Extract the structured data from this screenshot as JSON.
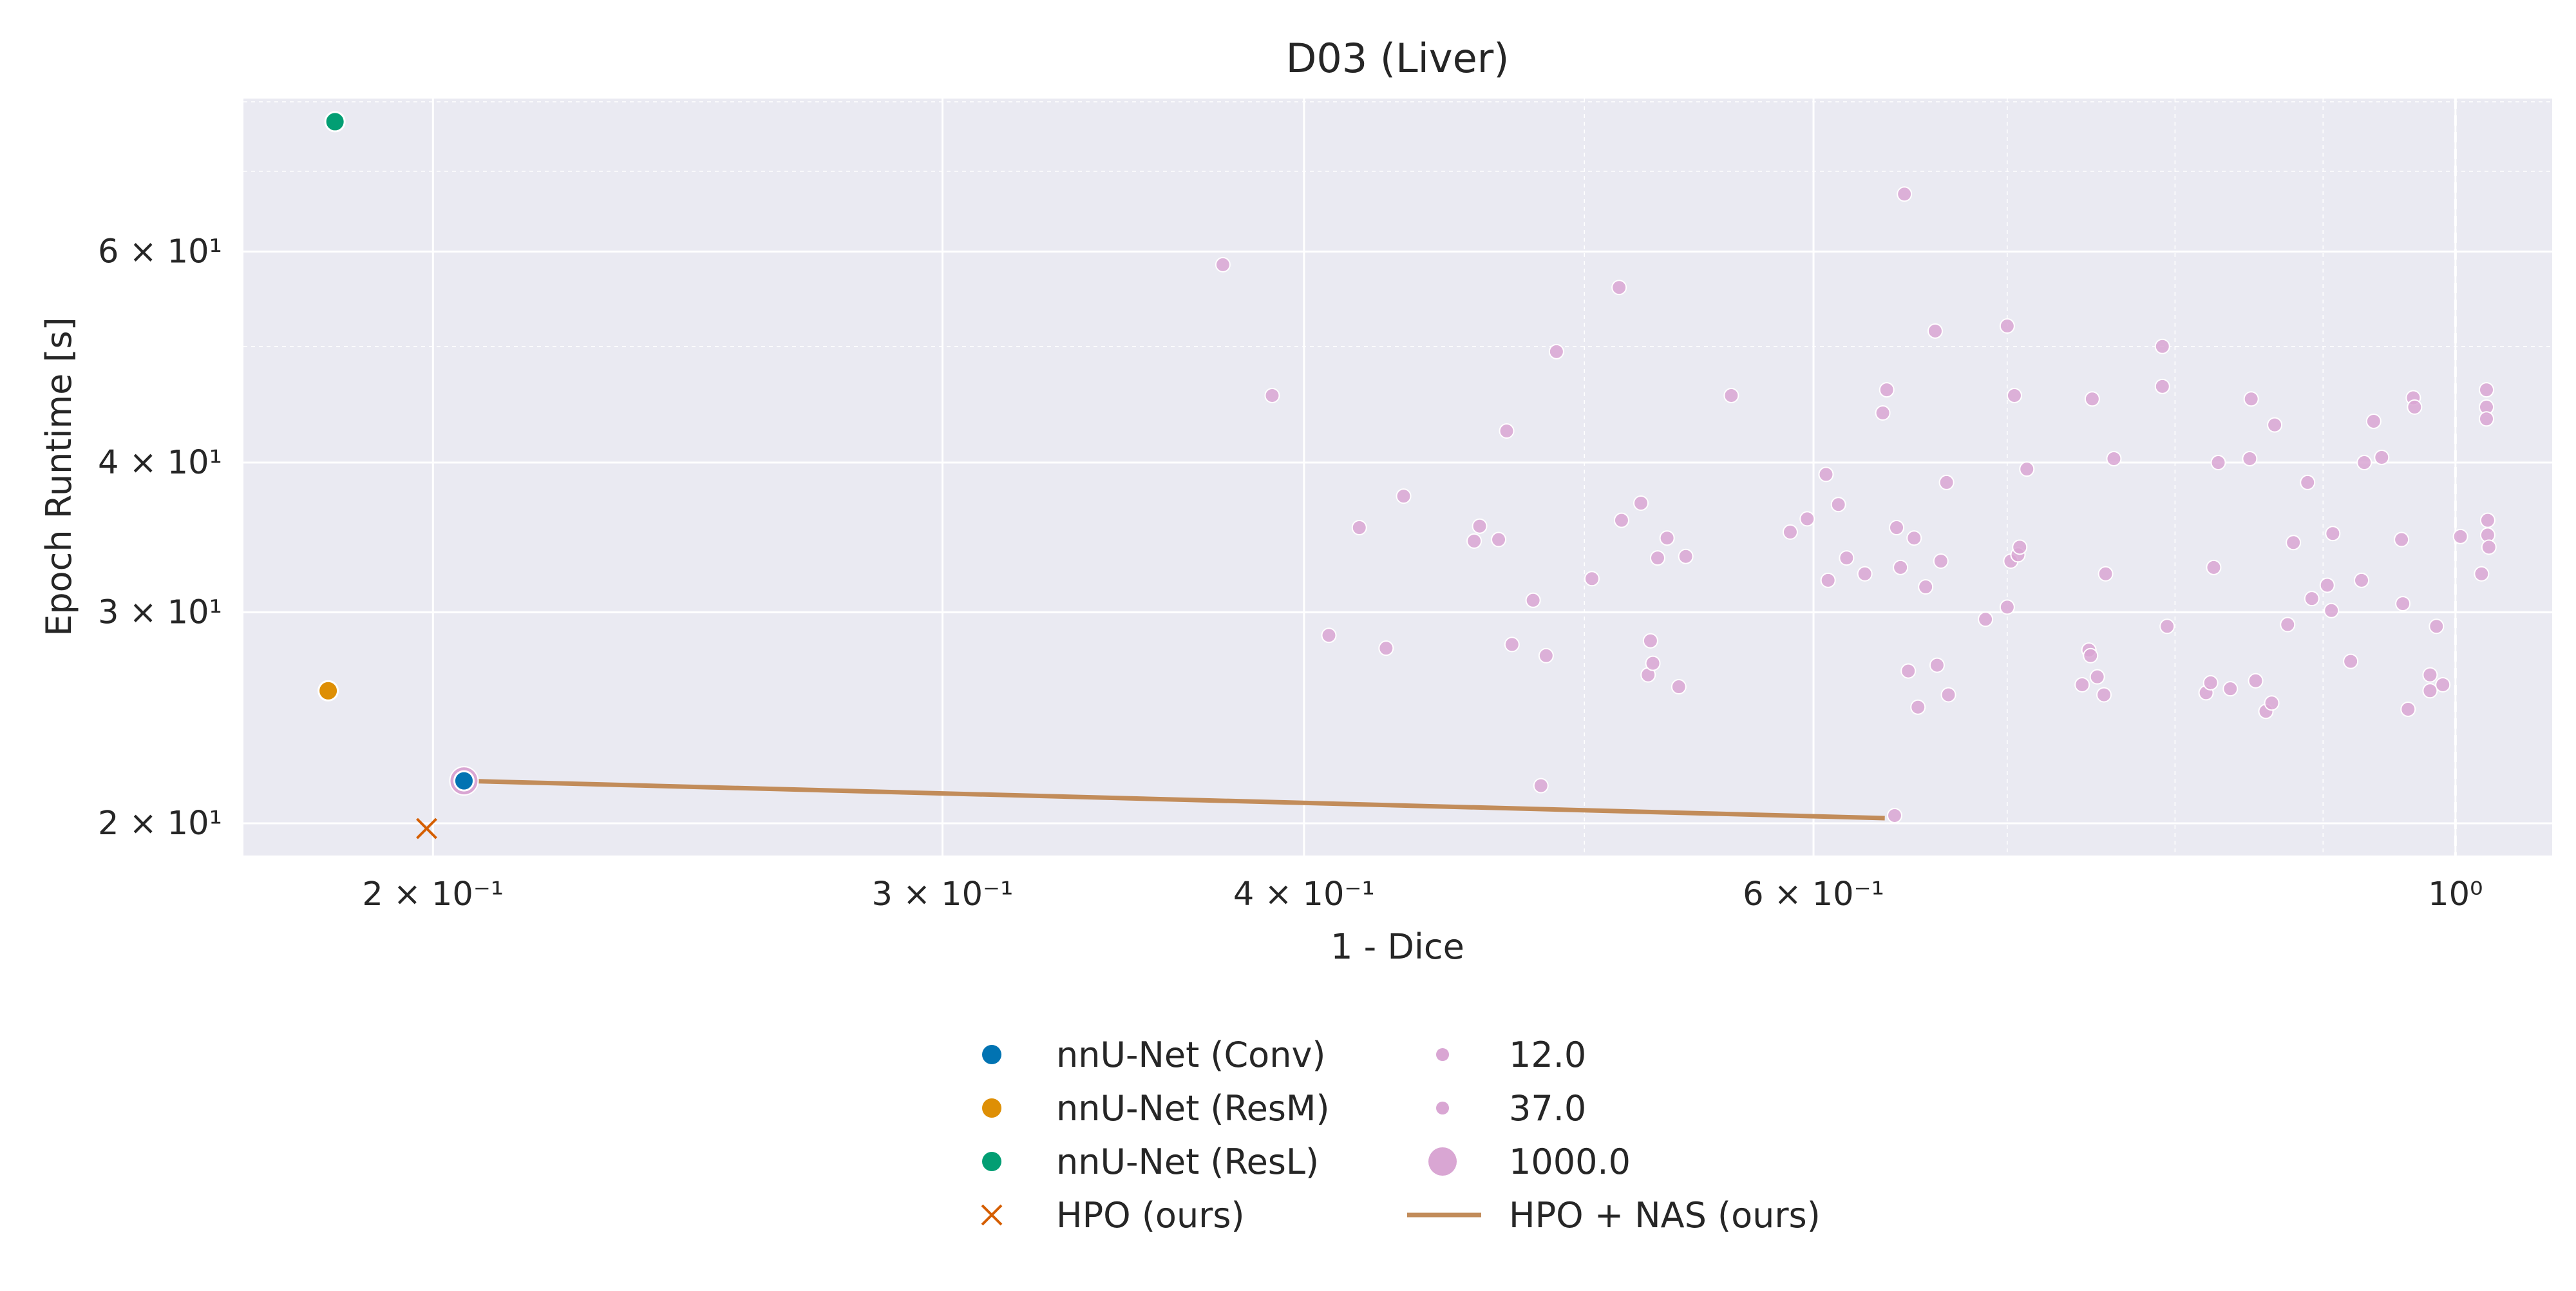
{
  "chart_data": {
    "type": "scatter",
    "title": "D03 (Liver)",
    "xlabel": "1 - Dice",
    "ylabel": "Epoch Runtime [s]",
    "x_scale": "log",
    "y_scale": "log",
    "xlim": [
      0.172,
      1.08
    ],
    "ylim": [
      18.8,
      80.5
    ],
    "grid": true,
    "x_reference_line": 1.0,
    "x_ticks": [
      {
        "value": 0.2,
        "label": "2 × 10⁻¹"
      },
      {
        "value": 0.3,
        "label": "3 × 10⁻¹"
      },
      {
        "value": 0.4,
        "label": "4 × 10⁻¹"
      },
      {
        "value": 0.6,
        "label": "6 × 10⁻¹"
      },
      {
        "value": 1.0,
        "label": "10⁰"
      }
    ],
    "y_ticks": [
      {
        "value": 20,
        "label": "2 × 10¹"
      },
      {
        "value": 30,
        "label": "3 × 10¹"
      },
      {
        "value": 40,
        "label": "4 × 10¹"
      },
      {
        "value": 60,
        "label": "6 × 10¹"
      }
    ],
    "baselines": [
      {
        "name": "nnU-Net (Conv)",
        "color": "#0173b2",
        "points": [
          [
            0.205,
            21.7
          ]
        ]
      },
      {
        "name": "nnU-Net (ResM)",
        "color": "#de8f05",
        "points": [
          [
            0.184,
            25.8
          ]
        ]
      },
      {
        "name": "nnU-Net (ResL)",
        "color": "#029e73",
        "points": [
          [
            0.185,
            77.0
          ]
        ]
      }
    ],
    "hpo": {
      "name": "HPO (ours)",
      "color": "#d55e00",
      "marker": "x",
      "points": [
        [
          0.199,
          19.8
        ]
      ]
    },
    "pareto_front": {
      "name": "HPO + NAS (ours)",
      "color": "#c28c5a",
      "points": [
        [
          0.205,
          21.7
        ],
        [
          0.635,
          20.2
        ]
      ]
    },
    "nas_color": "#d9a6d3",
    "nas_points": [
      [
        0.375,
        58.5
      ],
      [
        0.39,
        45.5
      ],
      [
        0.408,
        28.7
      ],
      [
        0.418,
        35.3
      ],
      [
        0.427,
        28.0
      ],
      [
        0.433,
        37.5
      ],
      [
        0.458,
        34.4
      ],
      [
        0.46,
        35.4
      ],
      [
        0.467,
        34.5
      ],
      [
        0.47,
        42.5
      ],
      [
        0.472,
        28.2
      ],
      [
        0.48,
        30.7
      ],
      [
        0.483,
        21.5
      ],
      [
        0.485,
        27.6
      ],
      [
        0.489,
        49.5
      ],
      [
        0.503,
        32.0
      ],
      [
        0.514,
        56.0
      ],
      [
        0.515,
        35.8
      ],
      [
        0.523,
        37.0
      ],
      [
        0.526,
        26.6
      ],
      [
        0.527,
        28.4
      ],
      [
        0.528,
        27.2
      ],
      [
        0.53,
        33.3
      ],
      [
        0.534,
        34.6
      ],
      [
        0.539,
        26.0
      ],
      [
        0.542,
        33.4
      ],
      [
        0.562,
        45.5
      ],
      [
        0.589,
        35.0
      ],
      [
        0.597,
        35.9
      ],
      [
        0.606,
        39.1
      ],
      [
        0.607,
        31.9
      ],
      [
        0.612,
        36.9
      ],
      [
        0.616,
        33.3
      ],
      [
        0.625,
        32.3
      ],
      [
        0.634,
        44.0
      ],
      [
        0.636,
        46.0
      ],
      [
        0.641,
        35.3
      ],
      [
        0.643,
        32.7
      ],
      [
        0.645,
        67.0
      ],
      [
        0.647,
        26.8
      ],
      [
        0.65,
        34.6
      ],
      [
        0.652,
        25.0
      ],
      [
        0.656,
        31.5
      ],
      [
        0.661,
        51.5
      ],
      [
        0.662,
        27.1
      ],
      [
        0.664,
        33.1
      ],
      [
        0.667,
        38.5
      ],
      [
        0.668,
        25.6
      ],
      [
        0.688,
        29.6
      ],
      [
        0.7,
        30.3
      ],
      [
        0.7,
        52.0
      ],
      [
        0.702,
        33.1
      ],
      [
        0.704,
        45.5
      ],
      [
        0.706,
        33.5
      ],
      [
        0.707,
        34.0
      ],
      [
        0.711,
        39.5
      ],
      [
        0.743,
        26.1
      ],
      [
        0.747,
        27.9
      ],
      [
        0.748,
        27.6
      ],
      [
        0.749,
        45.2
      ],
      [
        0.752,
        26.5
      ],
      [
        0.756,
        25.6
      ],
      [
        0.757,
        32.3
      ],
      [
        0.762,
        40.3
      ],
      [
        0.792,
        50.0
      ],
      [
        0.792,
        46.3
      ],
      [
        0.795,
        29.2
      ],
      [
        0.82,
        25.7
      ],
      [
        0.823,
        26.2
      ],
      [
        0.825,
        32.7
      ],
      [
        0.828,
        40.0
      ],
      [
        0.836,
        25.9
      ],
      [
        0.849,
        40.3
      ],
      [
        0.85,
        45.2
      ],
      [
        0.853,
        26.3
      ],
      [
        0.86,
        24.8
      ],
      [
        0.864,
        25.2
      ],
      [
        0.866,
        43.0
      ],
      [
        0.875,
        29.3
      ],
      [
        0.879,
        34.3
      ],
      [
        0.889,
        38.5
      ],
      [
        0.892,
        30.8
      ],
      [
        0.903,
        31.6
      ],
      [
        0.906,
        30.1
      ],
      [
        0.907,
        34.9
      ],
      [
        0.92,
        27.3
      ],
      [
        0.928,
        31.9
      ],
      [
        0.93,
        40.0
      ],
      [
        0.937,
        43.3
      ],
      [
        0.943,
        40.4
      ],
      [
        0.958,
        34.5
      ],
      [
        0.959,
        30.5
      ],
      [
        0.963,
        24.9
      ],
      [
        0.967,
        45.3
      ],
      [
        0.968,
        44.5
      ],
      [
        0.98,
        26.6
      ],
      [
        0.98,
        25.8
      ],
      [
        0.985,
        29.2
      ],
      [
        0.99,
        26.1
      ],
      [
        1.004,
        34.7
      ],
      [
        1.021,
        32.3
      ],
      [
        1.025,
        46.0
      ],
      [
        1.025,
        44.5
      ],
      [
        1.025,
        43.5
      ],
      [
        1.026,
        35.8
      ],
      [
        1.026,
        34.8
      ],
      [
        1.027,
        34.0
      ],
      [
        0.64,
        20.3
      ]
    ],
    "size_legend": [
      {
        "label": "12.0",
        "size": 12
      },
      {
        "label": "37.0",
        "size": 37
      },
      {
        "label": "1000.0",
        "size": 1000
      }
    ]
  }
}
